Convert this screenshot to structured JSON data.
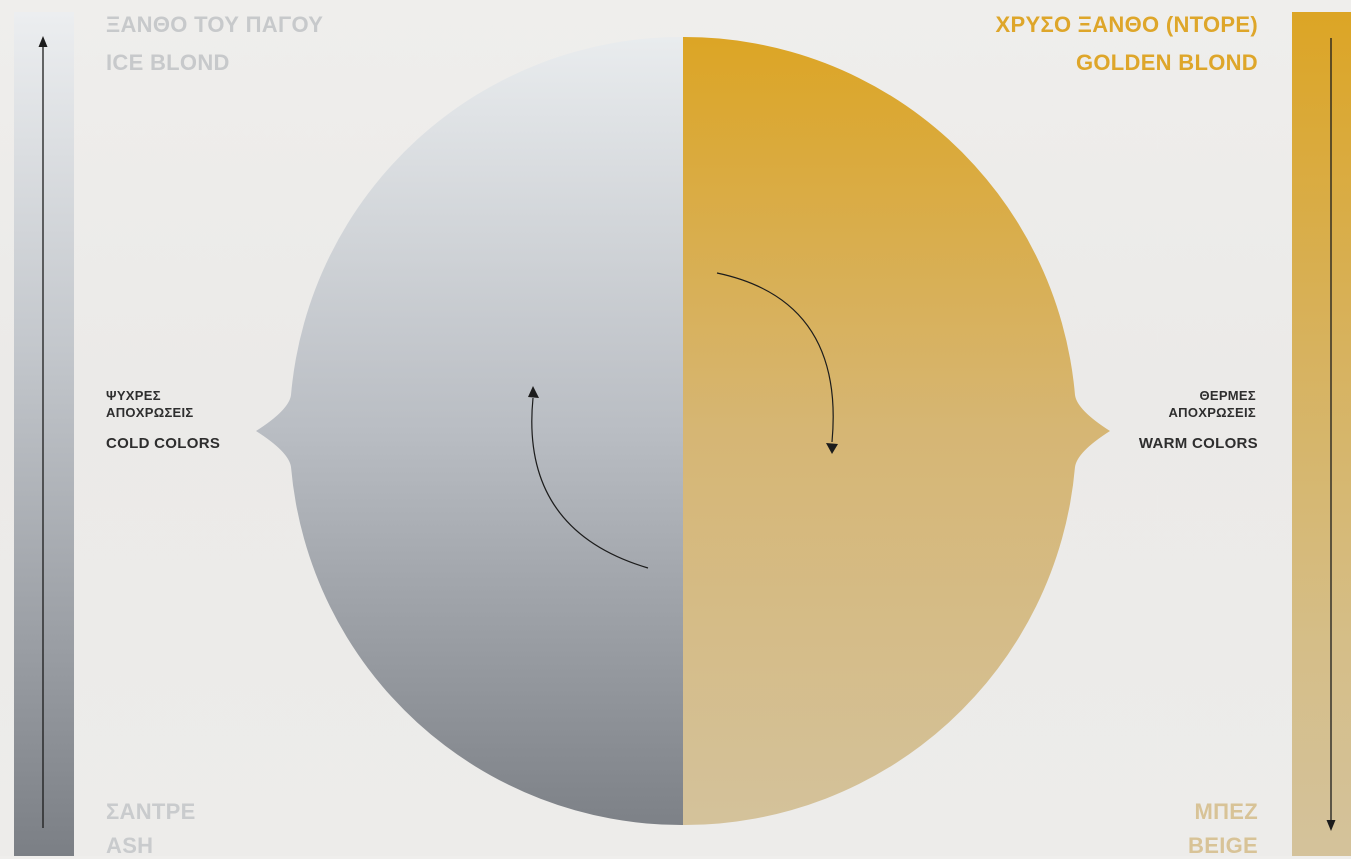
{
  "cold_side": {
    "top_label_gr": "ΞΑΝΘΟ ΤΟΥ ΠΑΓΟΥ",
    "top_label_en": "ICE BLOND",
    "bottom_label_gr": "ΣΑΝΤΡΕ",
    "bottom_label_en": "ASH",
    "side_label_gr_line1": "ΨΥΧΡΕΣ",
    "side_label_gr_line2": "ΑΠΟΧΡΩΣΕΙΣ",
    "side_label_en": "COLD COLORS",
    "color_top": "#e9ecee",
    "color_bottom": "#7d8187",
    "arrow_direction": "up"
  },
  "warm_side": {
    "top_label_gr": "ΧΡΥΣΟ ΞΑΝΘΟ (ΝΤΟΡΕ)",
    "top_label_en": "GOLDEN BLOND",
    "bottom_label_gr": "ΜΠΕΖ",
    "bottom_label_en": "BEIGE",
    "side_label_gr_line1": "ΘΕΡΜΕΣ",
    "side_label_gr_line2": "ΑΠΟΧΡΩΣΕΙΣ",
    "side_label_en": "WARM COLORS",
    "color_top": "#dca525",
    "color_bottom": "#d4c29b",
    "arrow_direction": "down"
  }
}
